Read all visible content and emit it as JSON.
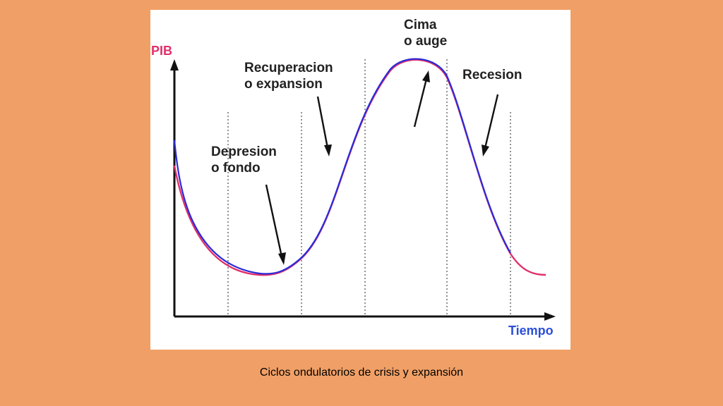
{
  "diagram": {
    "y_axis_label": "PIB",
    "x_axis_label": "Tiempo",
    "phases": {
      "depresion": [
        "Depresion",
        "o fondo"
      ],
      "recuperacion": [
        "Recuperacion",
        "o expansion"
      ],
      "cima": [
        "Cima",
        "o auge"
      ],
      "recesion": [
        "Recesion"
      ]
    },
    "colors": {
      "curve_primary": "#2b2bd9",
      "curve_secondary": "#e0306a",
      "y_label": "#e0306a",
      "x_label": "#2b4fd9",
      "background": "#f0a066"
    }
  },
  "caption": "Ciclos ondulatorios de crisis y expansión"
}
